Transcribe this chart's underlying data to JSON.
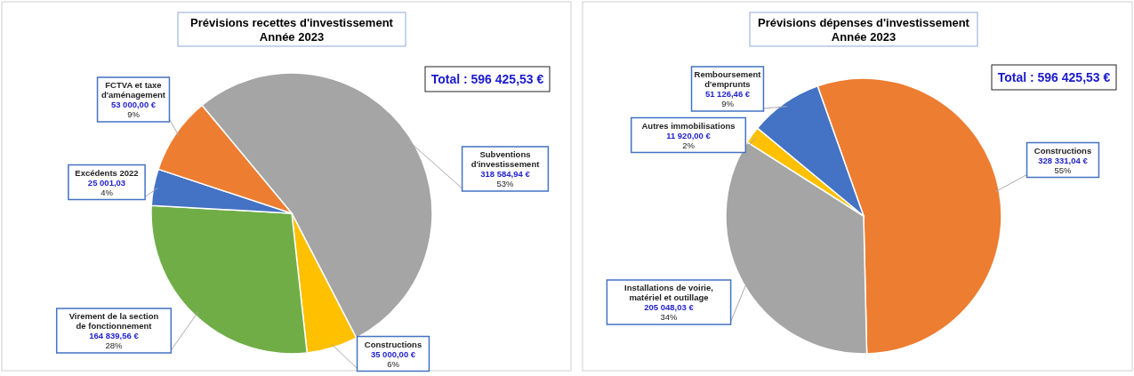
{
  "chart_data": [
    {
      "type": "pie",
      "title": "Prévisions recettes d'investissement",
      "subtitle": "Année 2023",
      "annotations": [
        "Total : 596 425,53 €"
      ],
      "categories": [
        "Subventions d'investissement",
        "Constructions",
        "Virement de la section de fonctionnement",
        "Excédents 2022",
        "FCTVA et taxe d'aménagement"
      ],
      "values": [
        318584.94,
        35000.0,
        164839.56,
        25001.03,
        53000.0
      ],
      "colors": [
        "#a5a5a5",
        "#ffc000",
        "#70ad47",
        "#4472c4",
        "#ed7d31"
      ],
      "value_labels": [
        "318 584,94 €\n53%",
        "35 000,00 €\n6%",
        "164 839,56 €\n28%",
        "25 001,03\n4%",
        "53 000,00 €\n9%"
      ],
      "legend": false
    },
    {
      "type": "pie",
      "title": "Prévisions dépenses d'investissement",
      "subtitle": "Année 2023",
      "annotations": [
        "Total : 596 425,53 €"
      ],
      "categories": [
        "Constructions",
        "Installations de voirie, matériel et outillage",
        "Autres immobilisations",
        "Remboursement d'emprunts"
      ],
      "values": [
        328331.04,
        205048.03,
        11920.0,
        51126.46
      ],
      "colors": [
        "#ed7d31",
        "#a5a5a5",
        "#ffc000",
        "#4472c4"
      ],
      "value_labels": [
        "328 331,04 €\n55%",
        "205 048,03 €\n34%",
        "11 920,00 €\n2%",
        "51 126,46 €\n9%"
      ],
      "legend": false
    }
  ]
}
